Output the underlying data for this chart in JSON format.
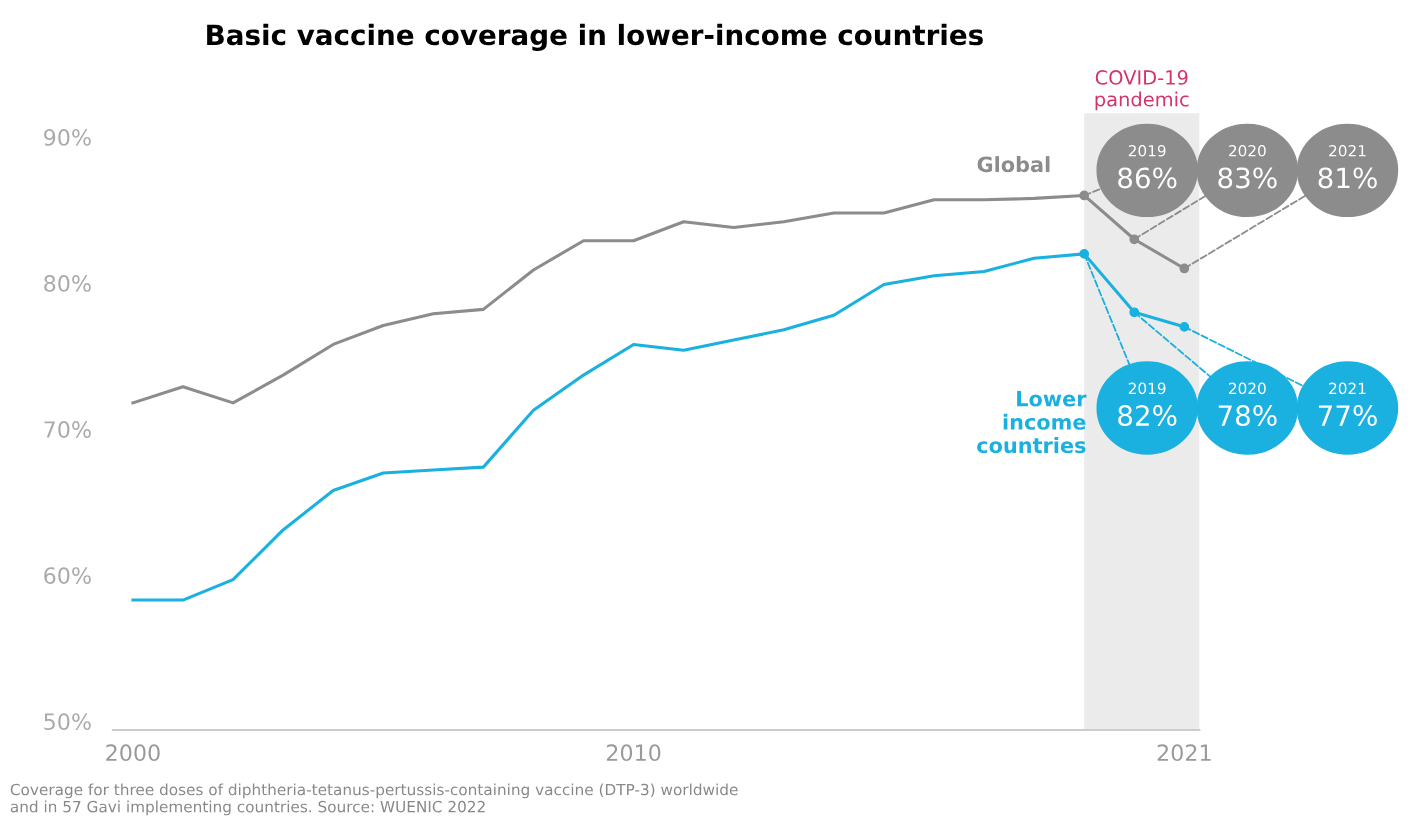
{
  "chart_data": {
    "type": "line",
    "title": "Basic vaccine coverage in lower-income countries",
    "x": [
      2000,
      2001,
      2002,
      2003,
      2004,
      2005,
      2006,
      2007,
      2008,
      2009,
      2010,
      2011,
      2012,
      2013,
      2014,
      2015,
      2016,
      2017,
      2018,
      2019,
      2020,
      2021
    ],
    "series": [
      {
        "name": "Global",
        "color": "#8c8c8c",
        "values": [
          71.8,
          72.9,
          71.8,
          73.7,
          75.8,
          77.1,
          77.9,
          78.2,
          80.9,
          82.9,
          82.9,
          84.2,
          83.8,
          84.2,
          84.8,
          84.8,
          85.7,
          85.7,
          85.8,
          86,
          83,
          81
        ],
        "value_labels": [
          null,
          null,
          null,
          null,
          null,
          null,
          null,
          null,
          null,
          null,
          null,
          null,
          null,
          null,
          null,
          null,
          null,
          null,
          null,
          "2019\n86%",
          "2020\n83%",
          "2021\n81%"
        ]
      },
      {
        "name": "Lower\nincome\ncountries",
        "color": "#1ab0e0",
        "values": [
          58.3,
          58.3,
          59.7,
          63.1,
          65.8,
          67.0,
          67.2,
          67.4,
          71.3,
          73.7,
          75.8,
          75.4,
          76.1,
          76.8,
          77.8,
          79.9,
          80.5,
          80.8,
          81.7,
          82,
          78,
          77
        ],
        "value_labels": [
          null,
          null,
          null,
          null,
          null,
          null,
          null,
          null,
          null,
          null,
          null,
          null,
          null,
          null,
          null,
          null,
          null,
          null,
          null,
          "2019\n82%",
          "2020\n78%",
          "2021\n77%"
        ]
      }
    ],
    "xlim": [
      1999.6,
      2021.3
    ],
    "xticks": [
      2000,
      2010,
      2021
    ],
    "ylim": [
      49.4,
      90
    ],
    "yticks": [
      {
        "value": 50,
        "label": "50%"
      },
      {
        "value": 60,
        "label": "60%"
      },
      {
        "value": 70,
        "label": "70%"
      },
      {
        "value": 80,
        "label": "80%"
      },
      {
        "value": 90,
        "label": "90%"
      }
    ],
    "bands": [
      {
        "axis": "x",
        "from": 2019,
        "to": 2021.3,
        "label": "COVID-19\npandemic",
        "color": "#ebebeb"
      }
    ],
    "grid": false,
    "legend": false,
    "annotations": [
      "Coverage for three doses of diphtheria-tetanus-pertussis-containing vaccine (DTP-3) worldwide\nand in 57 Gavi implementing countries. Source: WUENIC 2022"
    ]
  }
}
